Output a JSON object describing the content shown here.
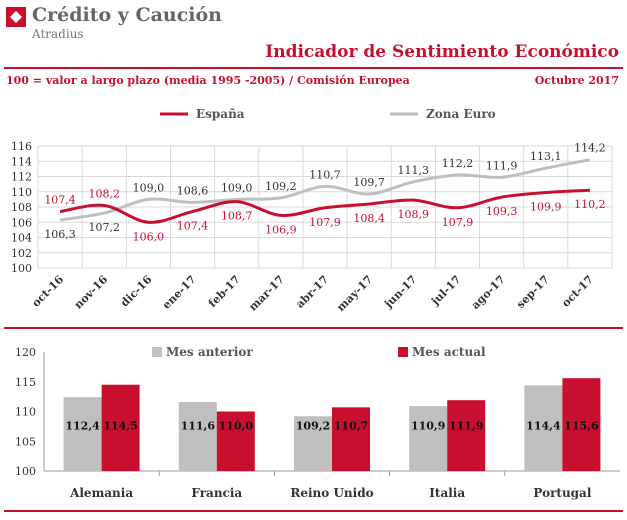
{
  "header": {
    "brand": "Crédito y Caución",
    "brand_sub": "Atradius",
    "title": "Indicador de Sentimiento Económico",
    "subtitle": "100 = valor a largo plazo (media 1995 -2005) / Comisión Europea",
    "date": "Octubre 2017"
  },
  "colors": {
    "red": "#c8102e",
    "grey": "#bfbfbf",
    "text": "#333333"
  },
  "chart_data": [
    {
      "type": "line",
      "x": [
        "oct-16",
        "nov-16",
        "dic-16",
        "ene-17",
        "feb-17",
        "mar-17",
        "abr-17",
        "may-17",
        "jun-17",
        "jul-17",
        "ago-17",
        "sep-17",
        "oct-17"
      ],
      "series": [
        {
          "name": "España",
          "color": "#c8102e",
          "values": [
            107.4,
            108.2,
            106.0,
            107.4,
            108.7,
            106.9,
            107.9,
            108.4,
            108.9,
            107.9,
            109.3,
            109.9,
            110.2
          ],
          "labels": [
            "107,4",
            "108,2",
            "106,0",
            "107,4",
            "108,7",
            "106,9",
            "107,9",
            "108,4",
            "108,9",
            "107,9",
            "109,3",
            "109,9",
            "110,2"
          ]
        },
        {
          "name": "Zona Euro",
          "color": "#bfbfbf",
          "values": [
            106.3,
            107.2,
            109.0,
            108.6,
            109.0,
            109.2,
            110.7,
            109.7,
            111.3,
            112.2,
            111.9,
            113.1,
            114.2
          ],
          "labels": [
            "106,3",
            "107,2",
            "109,0",
            "108,6",
            "109,0",
            "109,2",
            "110,7",
            "109,7",
            "111,3",
            "112,2",
            "111,9",
            "113,1",
            "114,2"
          ]
        }
      ],
      "ylim": [
        100,
        116
      ],
      "yticks": [
        "100",
        "102",
        "104",
        "106",
        "108",
        "110",
        "112",
        "114",
        "116"
      ],
      "grid": true,
      "legend": "top"
    },
    {
      "type": "bar",
      "categories": [
        "Alemania",
        "Francia",
        "Reino Unido",
        "Italia",
        "Portugal"
      ],
      "series": [
        {
          "name": "Mes anterior",
          "color": "#bfbfbf",
          "values": [
            112.4,
            111.6,
            109.2,
            110.9,
            114.4
          ],
          "labels": [
            "112,4",
            "111,6",
            "109,2",
            "110,9",
            "114,4"
          ]
        },
        {
          "name": "Mes actual",
          "color": "#c8102e",
          "values": [
            114.5,
            110.0,
            110.7,
            111.9,
            115.6
          ],
          "labels": [
            "114,5",
            "110,0",
            "110,7",
            "111,9",
            "115,6"
          ]
        }
      ],
      "ylim": [
        100,
        120
      ],
      "yticks": [
        "100",
        "105",
        "110",
        "115",
        "120"
      ],
      "legend": "top"
    }
  ]
}
